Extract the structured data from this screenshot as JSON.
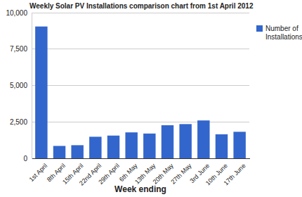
{
  "chart_data": {
    "type": "bar",
    "title": "Weekly Solar PV Installations comparison chart from 1st April 2012",
    "x_label": "Week ending",
    "categories": [
      "1st April",
      "8th April",
      "15th April",
      "22nd April",
      "29th April",
      "6th May",
      "13th May",
      "20th May",
      "27th May",
      "3rd June",
      "10th June",
      "17th June"
    ],
    "series": [
      {
        "name": "Number of Installations",
        "color": "#3366cc",
        "values": [
          9050,
          850,
          900,
          1480,
          1560,
          1780,
          1700,
          2270,
          2350,
          2600,
          1650,
          1820
        ]
      }
    ],
    "ylim": [
      0,
      10000
    ],
    "yticks": [
      0,
      {
        "value": 2500,
        "label": "2,500"
      },
      {
        "value": 5000,
        "label": "5,000"
      },
      {
        "value": 7500,
        "label": "7,500"
      },
      {
        "value": 10000,
        "label": "10,000"
      }
    ],
    "grid": true,
    "legend": "right"
  }
}
